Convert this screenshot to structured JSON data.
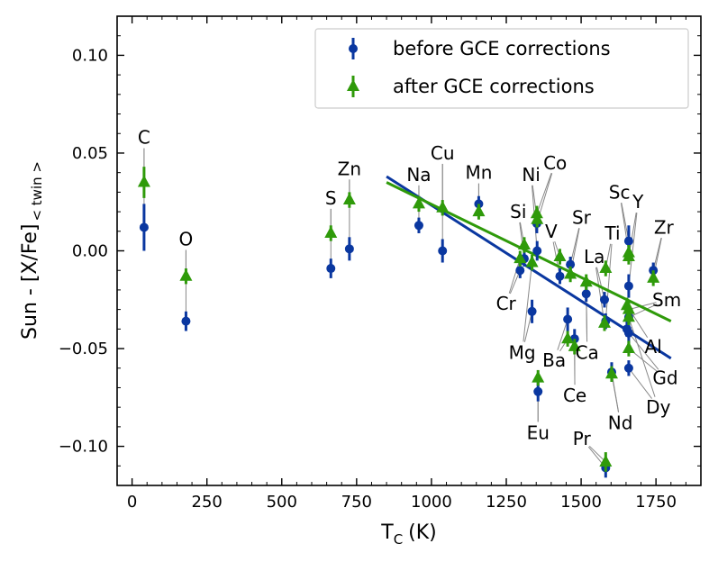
{
  "chart_data": {
    "type": "scatter",
    "xlabel": "T",
    "xlabel_sub": "C",
    "xlabel_unit": "(K)",
    "ylabel": "Sun - [X/Fe]",
    "ylabel_sub": "< twin >",
    "xlim": [
      -50,
      1900
    ],
    "ylim": [
      -0.12,
      0.12
    ],
    "x_ticks": [
      0,
      250,
      500,
      750,
      1000,
      1250,
      1500,
      1750
    ],
    "x_tick_labels": [
      "0",
      "250",
      "500",
      "750",
      "1000",
      "1250",
      "1500",
      "1750"
    ],
    "y_ticks": [
      -0.1,
      -0.05,
      0.0,
      0.05,
      0.1
    ],
    "y_tick_labels": [
      "−0.10",
      "−0.05",
      "0.00",
      "0.05",
      "0.10"
    ],
    "legend": [
      {
        "label": "before GCE corrections",
        "color": "#0a37a0",
        "marker": "circle"
      },
      {
        "label": "after GCE corrections",
        "color": "#2f9a0a",
        "marker": "triangle"
      }
    ],
    "colors": {
      "before": "#0a37a0",
      "after": "#2f9a0a",
      "connector": "#888888"
    },
    "series": [
      {
        "name": "before GCE corrections",
        "points": [
          {
            "el": "C",
            "x": 40,
            "y": 0.012,
            "err": 0.012
          },
          {
            "el": "O",
            "x": 180,
            "y": -0.036,
            "err": 0.005
          },
          {
            "el": "S",
            "x": 664,
            "y": -0.009,
            "err": 0.005
          },
          {
            "el": "Zn",
            "x": 726,
            "y": 0.001,
            "err": 0.006
          },
          {
            "el": "Na",
            "x": 958,
            "y": 0.013,
            "err": 0.004
          },
          {
            "el": "Cu",
            "x": 1037,
            "y": 0.0,
            "err": 0.006
          },
          {
            "el": "Mn",
            "x": 1158,
            "y": 0.024,
            "err": 0.004
          },
          {
            "el": "Cr",
            "x": 1296,
            "y": -0.01,
            "err": 0.004
          },
          {
            "el": "Si",
            "x": 1310,
            "y": -0.004,
            "err": 0.004
          },
          {
            "el": "Mg",
            "x": 1336,
            "y": -0.031,
            "err": 0.006
          },
          {
            "el": "Ni",
            "x": 1353,
            "y": 0.0,
            "err": 0.005
          },
          {
            "el": "Co",
            "x": 1352,
            "y": 0.014,
            "err": 0.005
          },
          {
            "el": "V",
            "x": 1429,
            "y": -0.013,
            "err": 0.004
          },
          {
            "el": "Ba",
            "x": 1455,
            "y": -0.035,
            "err": 0.006
          },
          {
            "el": "Sr",
            "x": 1464,
            "y": -0.007,
            "err": 0.004
          },
          {
            "el": "Ce",
            "x": 1478,
            "y": -0.045,
            "err": 0.005
          },
          {
            "el": "Ca",
            "x": 1517,
            "y": -0.022,
            "err": 0.004
          },
          {
            "el": "La",
            "x": 1578,
            "y": -0.025,
            "err": 0.004
          },
          {
            "el": "Ti",
            "x": 1582,
            "y": -0.036,
            "err": 0.004
          },
          {
            "el": "Eu",
            "x": 1356,
            "y": -0.072,
            "err": 0.005
          },
          {
            "el": "Pr",
            "x": 1582,
            "y": -0.111,
            "err": 0.005
          },
          {
            "el": "Nd",
            "x": 1602,
            "y": -0.062,
            "err": 0.005
          },
          {
            "el": "Sc",
            "x": 1659,
            "y": 0.005,
            "err": 0.008
          },
          {
            "el": "Y",
            "x": 1659,
            "y": -0.018,
            "err": 0.006
          },
          {
            "el": "Sm",
            "x": 1659,
            "y": -0.034,
            "err": 0.005
          },
          {
            "el": "Gd",
            "x": 1659,
            "y": -0.042,
            "err": 0.006
          },
          {
            "el": "Dy",
            "x": 1659,
            "y": -0.06,
            "err": 0.004
          },
          {
            "el": "Al",
            "x": 1653,
            "y": -0.04,
            "err": 0.004
          },
          {
            "el": "Zr",
            "x": 1741,
            "y": -0.01,
            "err": 0.004
          }
        ]
      },
      {
        "name": "after GCE corrections",
        "points": [
          {
            "el": "C",
            "x": 40,
            "y": 0.035,
            "err": 0.008
          },
          {
            "el": "O",
            "x": 180,
            "y": -0.013,
            "err": 0.004
          },
          {
            "el": "S",
            "x": 664,
            "y": 0.009,
            "err": 0.004
          },
          {
            "el": "Zn",
            "x": 726,
            "y": 0.026,
            "err": 0.004
          },
          {
            "el": "Na",
            "x": 958,
            "y": 0.024,
            "err": 0.004
          },
          {
            "el": "Cu",
            "x": 1037,
            "y": 0.022,
            "err": 0.004
          },
          {
            "el": "Mn",
            "x": 1158,
            "y": 0.02,
            "err": 0.004
          },
          {
            "el": "Cr",
            "x": 1296,
            "y": -0.004,
            "err": 0.004
          },
          {
            "el": "Si",
            "x": 1310,
            "y": 0.003,
            "err": 0.004
          },
          {
            "el": "Mg",
            "x": 1336,
            "y": -0.006,
            "err": 0.004
          },
          {
            "el": "Ni",
            "x": 1353,
            "y": 0.016,
            "err": 0.004
          },
          {
            "el": "Co",
            "x": 1352,
            "y": 0.019,
            "err": 0.004
          },
          {
            "el": "V",
            "x": 1429,
            "y": -0.003,
            "err": 0.004
          },
          {
            "el": "Ba",
            "x": 1455,
            "y": -0.045,
            "err": 0.004
          },
          {
            "el": "Sr",
            "x": 1464,
            "y": -0.012,
            "err": 0.004
          },
          {
            "el": "Ce",
            "x": 1478,
            "y": -0.049,
            "err": 0.004
          },
          {
            "el": "Ca",
            "x": 1517,
            "y": -0.016,
            "err": 0.004
          },
          {
            "el": "La",
            "x": 1578,
            "y": -0.037,
            "err": 0.004
          },
          {
            "el": "Ti",
            "x": 1582,
            "y": -0.009,
            "err": 0.004
          },
          {
            "el": "Eu",
            "x": 1356,
            "y": -0.065,
            "err": 0.004
          },
          {
            "el": "Pr",
            "x": 1582,
            "y": -0.108,
            "err": 0.005
          },
          {
            "el": "Nd",
            "x": 1602,
            "y": -0.063,
            "err": 0.004
          },
          {
            "el": "Sc",
            "x": 1659,
            "y": -0.001,
            "err": 0.004
          },
          {
            "el": "Y",
            "x": 1659,
            "y": -0.003,
            "err": 0.004
          },
          {
            "el": "Sm",
            "x": 1659,
            "y": -0.03,
            "err": 0.004
          },
          {
            "el": "Gd",
            "x": 1659,
            "y": -0.05,
            "err": 0.004
          },
          {
            "el": "Dy",
            "x": 1659,
            "y": -0.034,
            "err": 0.004
          },
          {
            "el": "Al",
            "x": 1653,
            "y": -0.028,
            "err": 0.004
          },
          {
            "el": "Zr",
            "x": 1741,
            "y": -0.014,
            "err": 0.004
          }
        ]
      }
    ],
    "fits": [
      {
        "name": "before GCE corrections fit",
        "x": [
          850,
          1800
        ],
        "y": [
          0.038,
          -0.055
        ]
      },
      {
        "name": "after GCE corrections fit",
        "x": [
          850,
          1800
        ],
        "y": [
          0.035,
          -0.036
        ]
      }
    ],
    "annotations": [
      {
        "text": "C",
        "x": 40,
        "y": 0.058
      },
      {
        "text": "O",
        "x": 180,
        "y": 0.006
      },
      {
        "text": "S",
        "x": 664,
        "y": 0.027
      },
      {
        "text": "Zn",
        "x": 726,
        "y": 0.042
      },
      {
        "text": "Na",
        "x": 958,
        "y": 0.039
      },
      {
        "text": "Cu",
        "x": 1037,
        "y": 0.05
      },
      {
        "text": "Mn",
        "x": 1158,
        "y": 0.04
      },
      {
        "text": "Si",
        "x": 1290,
        "y": 0.02
      },
      {
        "text": "Ni",
        "x": 1333,
        "y": 0.039
      },
      {
        "text": "Co",
        "x": 1413,
        "y": 0.045
      },
      {
        "text": "V",
        "x": 1400,
        "y": 0.01
      },
      {
        "text": "Sr",
        "x": 1501,
        "y": 0.017
      },
      {
        "text": "Cr",
        "x": 1249,
        "y": -0.027
      },
      {
        "text": "La",
        "x": 1544,
        "y": -0.003
      },
      {
        "text": "Ti",
        "x": 1605,
        "y": 0.009
      },
      {
        "text": "Sc",
        "x": 1628,
        "y": 0.03
      },
      {
        "text": "Y",
        "x": 1690,
        "y": 0.025
      },
      {
        "text": "Zr",
        "x": 1776,
        "y": 0.012
      },
      {
        "text": "Sm",
        "x": 1786,
        "y": -0.025
      },
      {
        "text": "Mg",
        "x": 1303,
        "y": -0.052
      },
      {
        "text": "Ba",
        "x": 1410,
        "y": -0.056
      },
      {
        "text": "Ca",
        "x": 1520,
        "y": -0.052
      },
      {
        "text": "Ce",
        "x": 1479,
        "y": -0.074
      },
      {
        "text": "Al",
        "x": 1741,
        "y": -0.049
      },
      {
        "text": "Gd",
        "x": 1781,
        "y": -0.065
      },
      {
        "text": "Dy",
        "x": 1758,
        "y": -0.08
      },
      {
        "text": "Nd",
        "x": 1631,
        "y": -0.088
      },
      {
        "text": "Eu",
        "x": 1356,
        "y": -0.093
      },
      {
        "text": "Pr",
        "x": 1502,
        "y": -0.096
      }
    ]
  }
}
